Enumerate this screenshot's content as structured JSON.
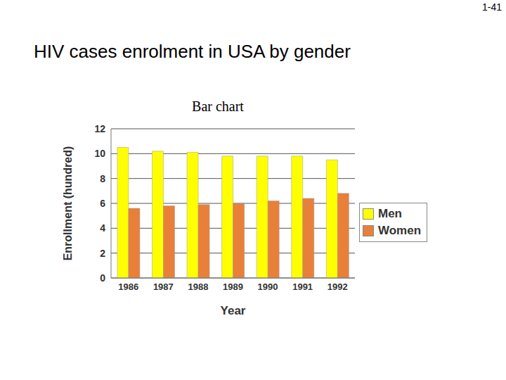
{
  "slide": {
    "number": "1-41",
    "title": "HIV cases enrolment in USA by gender"
  },
  "chart_data": {
    "type": "bar",
    "title": "Bar chart",
    "x_label": "Year",
    "y_label": "Enrollment (hundred)",
    "categories": [
      "1986",
      "1987",
      "1988",
      "1989",
      "1990",
      "1991",
      "1992"
    ],
    "series": [
      {
        "name": "Men",
        "color": "#ffff00",
        "values": [
          10.5,
          10.2,
          10.1,
          9.8,
          9.8,
          9.8,
          9.5
        ]
      },
      {
        "name": "Women",
        "color": "#e8803a",
        "values": [
          5.6,
          5.8,
          5.9,
          6.0,
          6.2,
          6.4,
          6.8
        ]
      }
    ],
    "ylim": [
      0,
      12
    ],
    "yticks": [
      0,
      2,
      4,
      6,
      8,
      10,
      12
    ],
    "grid": true,
    "legend": "right"
  }
}
